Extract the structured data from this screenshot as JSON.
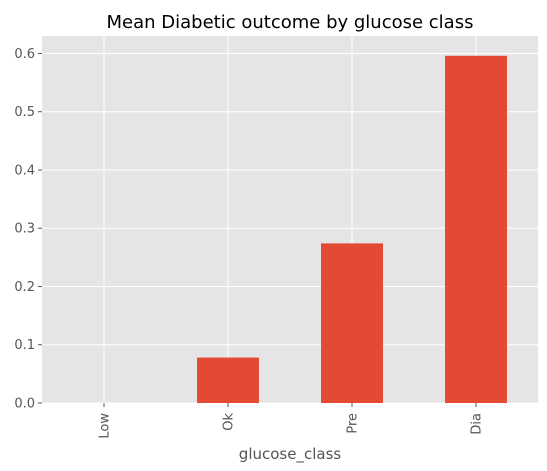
{
  "chart_data": {
    "type": "bar",
    "title": "Mean Diabetic outcome by glucose class",
    "xlabel": "glucose_class",
    "ylabel": "",
    "categories": [
      "Low",
      "Ok",
      "Pre",
      "Dia"
    ],
    "values": [
      0.0,
      0.078,
      0.274,
      0.596
    ],
    "ylim": [
      0,
      0.63
    ],
    "yticks": [
      "0.0",
      "0.1",
      "0.2",
      "0.3",
      "0.4",
      "0.5",
      "0.6"
    ],
    "grid": true,
    "legend": "none",
    "colors": {
      "bar": "#E24A33",
      "plot_background": "#E5E5E5",
      "grid": "#FFFFFF",
      "tick_text": "#555555"
    }
  }
}
